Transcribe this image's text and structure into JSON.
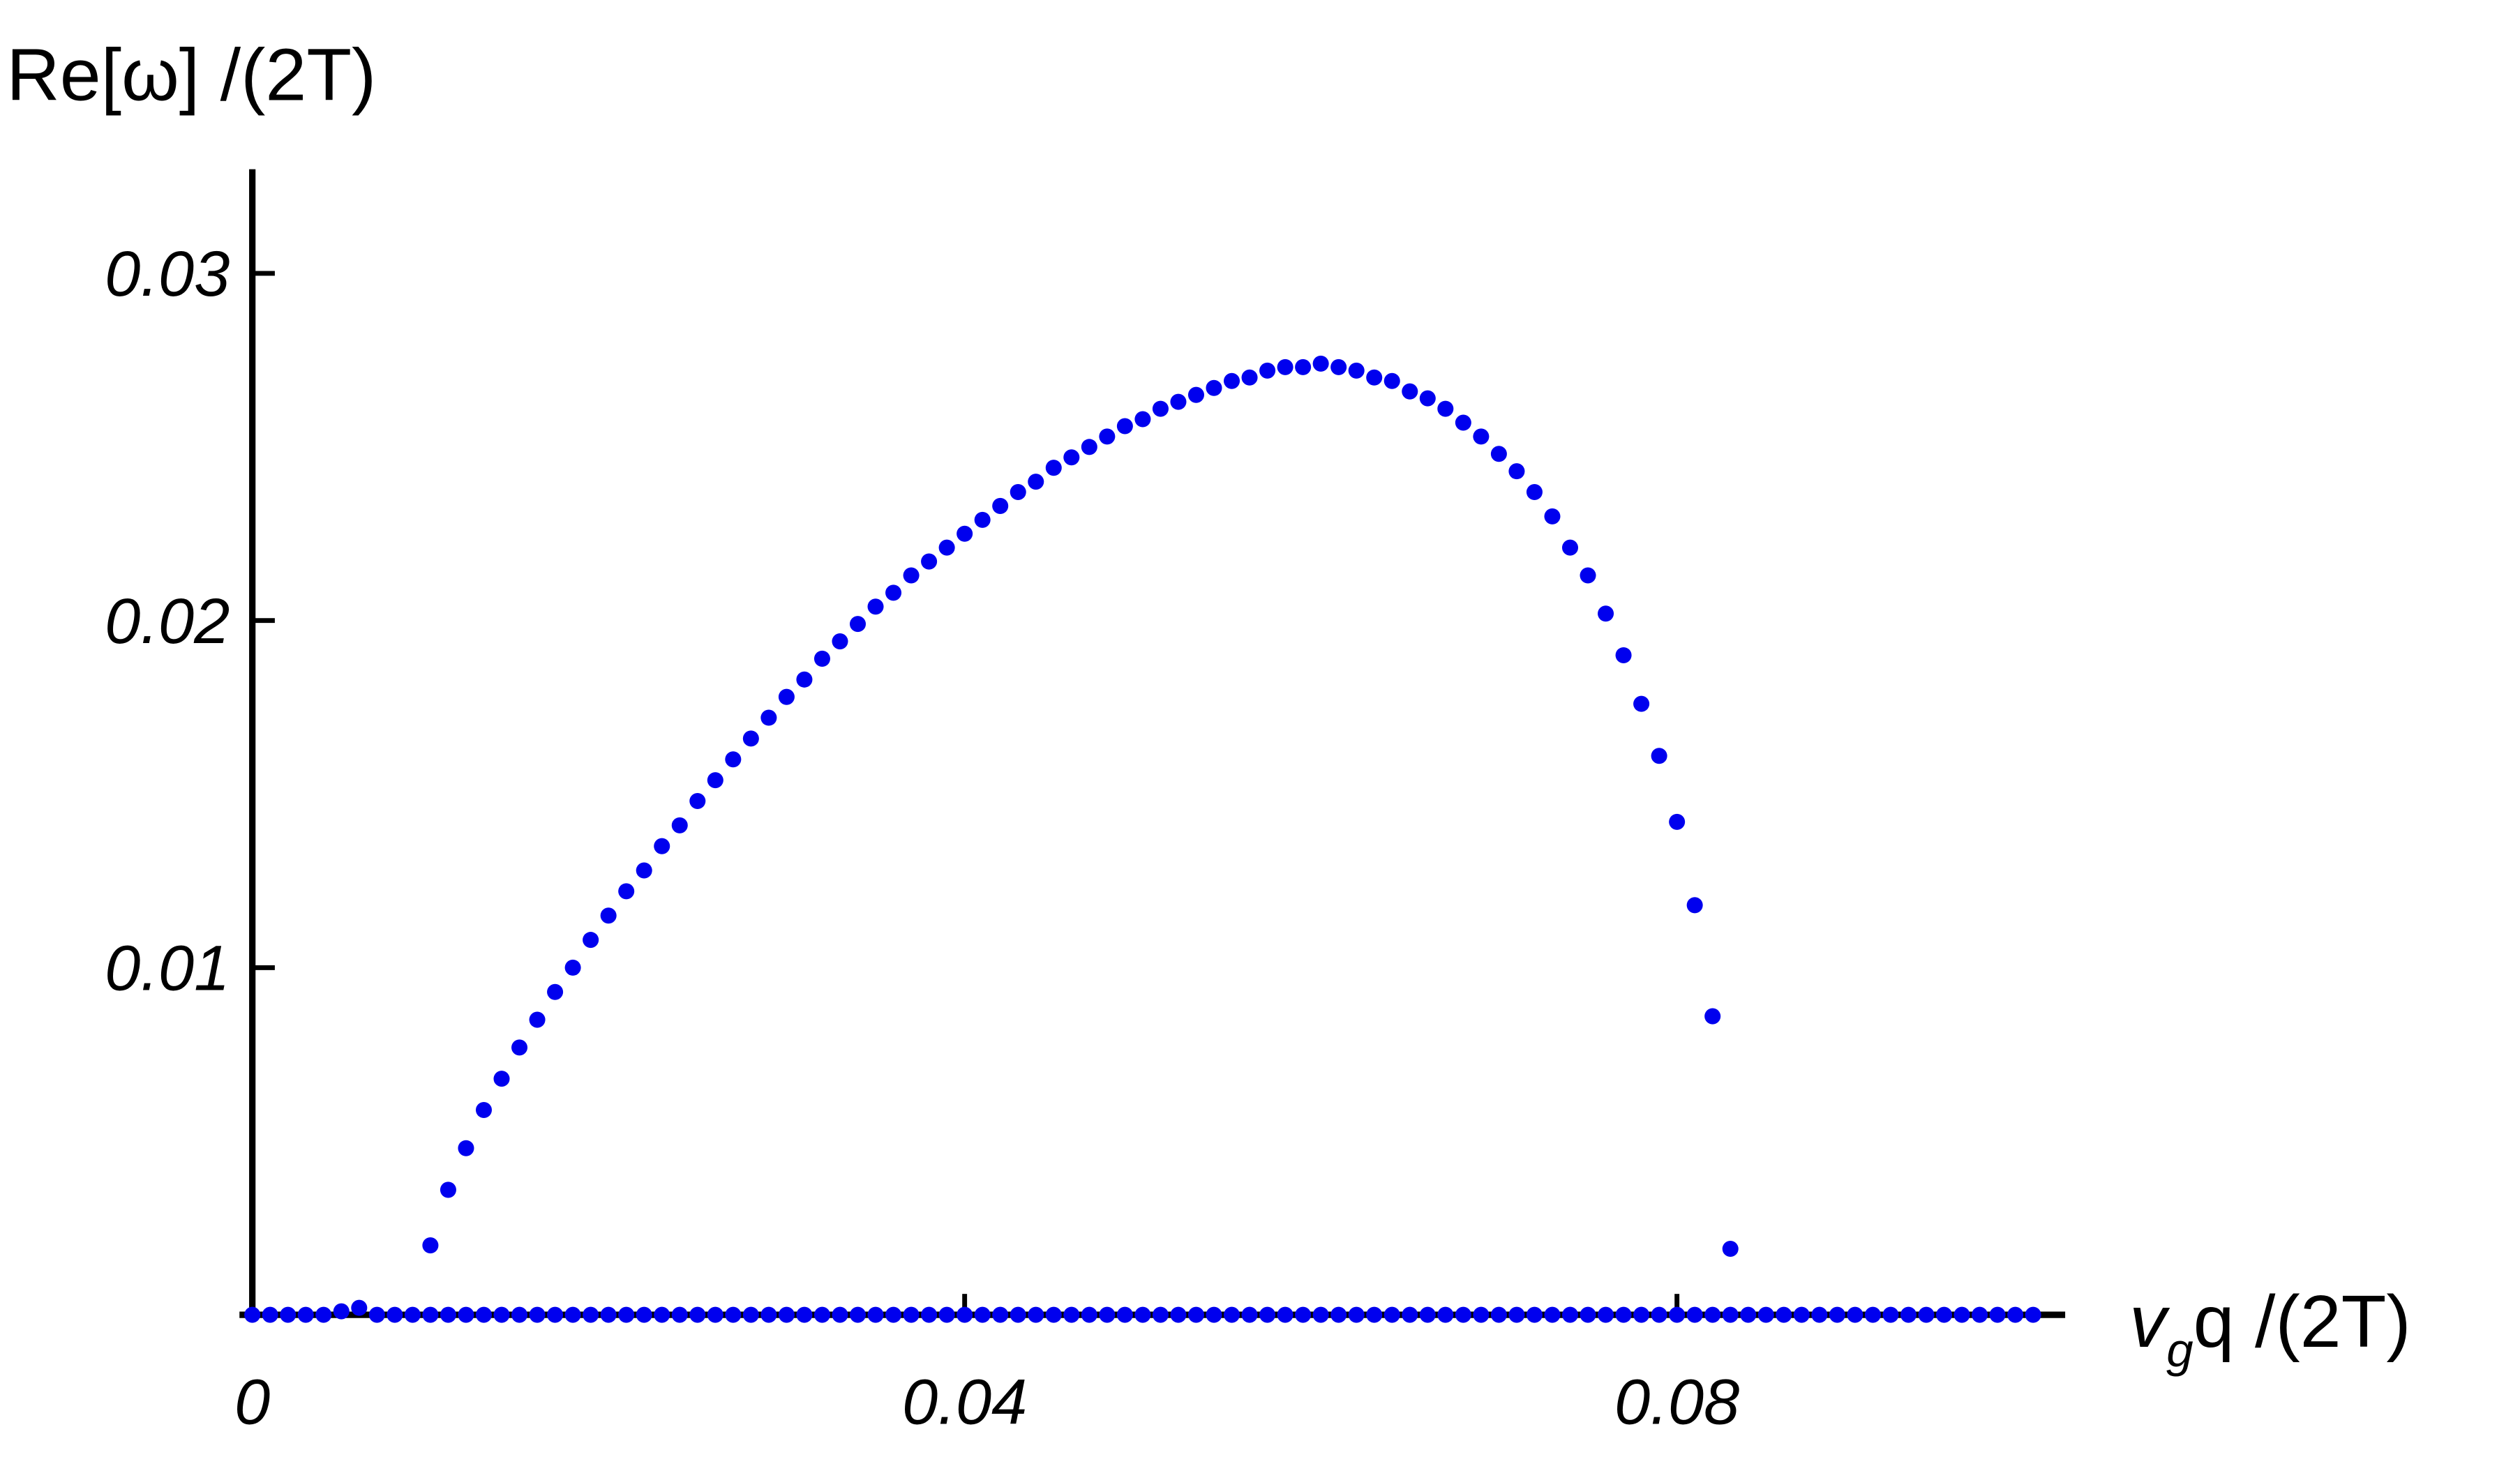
{
  "chart_data": {
    "type": "scatter",
    "ylabel": "Re[ω] /(2T)",
    "xlabel_parts": [
      "v",
      "g",
      "q /(2T)"
    ],
    "xlim": [
      0,
      0.1018
    ],
    "ylim": [
      0,
      0.033
    ],
    "xticks": [
      0,
      0.04,
      0.08
    ],
    "yticks": [
      0.01,
      0.02,
      0.03
    ],
    "series": [
      {
        "color": "#0000ee",
        "x": [
          0,
          0.001,
          0.002,
          0.003,
          0.004,
          0.005,
          0.006,
          0.007,
          0.008,
          0.009,
          0.01,
          0.011,
          0.012,
          0.013,
          0.014,
          0.015,
          0.016,
          0.017,
          0.018,
          0.019,
          0.02,
          0.021,
          0.022,
          0.023,
          0.024,
          0.025,
          0.026,
          0.027,
          0.028,
          0.029,
          0.03,
          0.031,
          0.032,
          0.033,
          0.034,
          0.035,
          0.036,
          0.037,
          0.038,
          0.039,
          0.04,
          0.041,
          0.042,
          0.043,
          0.044,
          0.045,
          0.046,
          0.047,
          0.048,
          0.049,
          0.05,
          0.051,
          0.052,
          0.053,
          0.054,
          0.055,
          0.056,
          0.057,
          0.058,
          0.059,
          0.06,
          0.061,
          0.062,
          0.063,
          0.064,
          0.065,
          0.066,
          0.067,
          0.068,
          0.069,
          0.07,
          0.071,
          0.072,
          0.073,
          0.074,
          0.075,
          0.076,
          0.077,
          0.078,
          0.079,
          0.08,
          0.081,
          0.082,
          0.083,
          0.084,
          0.085,
          0.086,
          0.087,
          0.088,
          0.089,
          0.09,
          0.091,
          0.092,
          0.093,
          0.094,
          0.095,
          0.096,
          0.097,
          0.098,
          0.099,
          0.1
        ],
        "values": [
          0,
          0,
          0,
          0,
          0,
          0.0001,
          0.0002,
          0,
          0,
          0,
          0,
          0,
          0,
          0,
          0,
          0,
          0,
          0,
          0,
          0,
          0,
          0,
          0,
          0,
          0,
          0,
          0,
          0,
          0,
          0,
          0,
          0,
          0,
          0,
          0,
          0,
          0,
          0,
          0,
          0,
          0,
          0,
          0,
          0,
          0,
          0,
          0,
          0,
          0,
          0,
          0,
          0,
          0,
          0,
          0,
          0,
          0,
          0,
          0,
          0,
          0,
          0,
          0,
          0,
          0,
          0,
          0,
          0,
          0,
          0,
          0,
          0,
          0,
          0,
          0,
          0,
          0,
          0,
          0,
          0,
          0,
          0,
          0,
          0,
          0,
          0,
          0,
          0,
          0,
          0,
          0,
          0,
          0,
          0,
          0,
          0,
          0,
          0,
          0,
          0,
          0
        ]
      },
      {
        "color": "#0000ee",
        "x": [
          0.01,
          0.011,
          0.012,
          0.013,
          0.014,
          0.015,
          0.016,
          0.017,
          0.018,
          0.019,
          0.02,
          0.021,
          0.022,
          0.023,
          0.024,
          0.025,
          0.026,
          0.027,
          0.028,
          0.029,
          0.03,
          0.031,
          0.032,
          0.033,
          0.034,
          0.035,
          0.036,
          0.037,
          0.038,
          0.039,
          0.04,
          0.041,
          0.042,
          0.043,
          0.044,
          0.045,
          0.046,
          0.047,
          0.048,
          0.049,
          0.05,
          0.051,
          0.052,
          0.053,
          0.054,
          0.055,
          0.056,
          0.057,
          0.058,
          0.059,
          0.06,
          0.061,
          0.062,
          0.063,
          0.064,
          0.065,
          0.066,
          0.067,
          0.068,
          0.069,
          0.07,
          0.071,
          0.072,
          0.073,
          0.074,
          0.075,
          0.076,
          0.077,
          0.078,
          0.079,
          0.08,
          0.081,
          0.082,
          0.083
        ],
        "values": [
          0.002,
          0.0036,
          0.0048,
          0.0059,
          0.0068,
          0.0077,
          0.0085,
          0.0093,
          0.01,
          0.0108,
          0.0115,
          0.0122,
          0.0128,
          0.0135,
          0.0141,
          0.0148,
          0.0154,
          0.016,
          0.0166,
          0.0172,
          0.0178,
          0.0183,
          0.0189,
          0.0194,
          0.0199,
          0.0204,
          0.0208,
          0.0213,
          0.0217,
          0.0221,
          0.0225,
          0.0229,
          0.0233,
          0.0237,
          0.024,
          0.0244,
          0.0247,
          0.025,
          0.0253,
          0.0256,
          0.0258,
          0.0261,
          0.0263,
          0.0265,
          0.0267,
          0.0269,
          0.027,
          0.0272,
          0.0273,
          0.0273,
          0.0274,
          0.0273,
          0.0272,
          0.027,
          0.0269,
          0.0266,
          0.0264,
          0.0261,
          0.0257,
          0.0253,
          0.0248,
          0.0243,
          0.0237,
          0.023,
          0.0221,
          0.0213,
          0.0202,
          0.019,
          0.0176,
          0.0161,
          0.0142,
          0.0118,
          0.0086,
          0.0019
        ]
      }
    ]
  }
}
